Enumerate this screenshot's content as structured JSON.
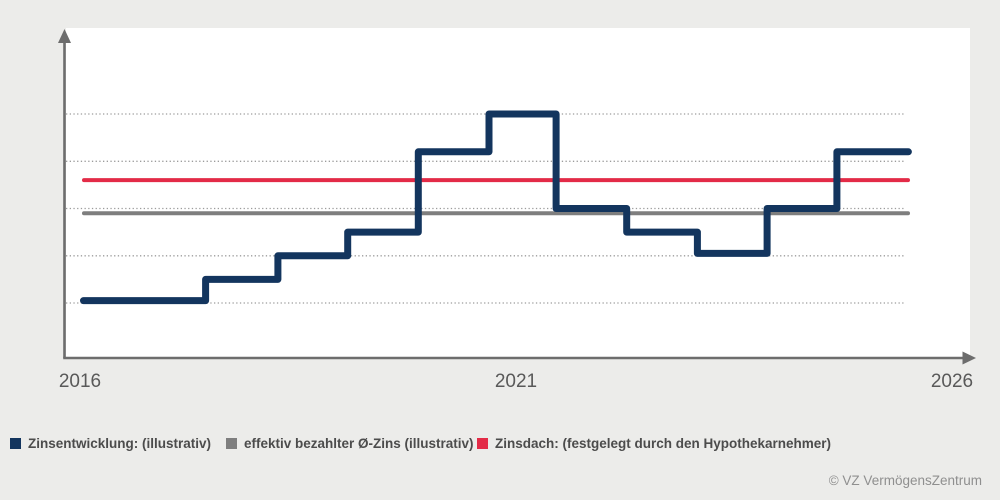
{
  "page": {
    "background_color": "#ececea",
    "plot_background_color": "#ffffff",
    "copyright": "© VZ VermögensZentrum"
  },
  "legend": [
    {
      "label": "Zinsentwicklung: (illustrativ)",
      "color": "#13355e"
    },
    {
      "label": "effektiv bezahlter Ø-Zins (illustrativ)",
      "color": "#7e7e7e"
    },
    {
      "label": "Zinsdach: (festgelegt durch den Hypothekarnehmer)",
      "color": "#e32b47"
    }
  ],
  "chart_data": {
    "type": "line",
    "subtype": "step",
    "title": "",
    "xlabel": "",
    "ylabel": "",
    "x_axis": {
      "ticks": [
        "2016",
        "2021",
        "2026"
      ],
      "range_years": [
        2016,
        2026
      ],
      "arrow": true
    },
    "y_axis": {
      "ticks": [],
      "gridline_values": [
        1,
        2,
        3,
        4,
        5
      ],
      "grid_style": "dotted",
      "arrow": true
    },
    "legend_position": "bottom",
    "series": [
      {
        "name": "Zinsentwicklung: (illustrativ)",
        "type": "step",
        "color": "#13355e",
        "stroke_width": 7,
        "points_year_value": [
          [
            2016.04,
            1.05
          ],
          [
            2017.44,
            1.05
          ],
          [
            2017.44,
            1.5
          ],
          [
            2018.27,
            1.5
          ],
          [
            2018.27,
            2.0
          ],
          [
            2019.07,
            2.0
          ],
          [
            2019.07,
            2.5
          ],
          [
            2019.88,
            2.5
          ],
          [
            2019.88,
            4.2
          ],
          [
            2020.69,
            4.2
          ],
          [
            2020.69,
            5.0
          ],
          [
            2021.46,
            5.0
          ],
          [
            2021.46,
            3.0
          ],
          [
            2022.27,
            3.0
          ],
          [
            2022.27,
            2.5
          ],
          [
            2023.08,
            2.5
          ],
          [
            2023.08,
            2.05
          ],
          [
            2023.88,
            2.05
          ],
          [
            2023.88,
            3.0
          ],
          [
            2024.68,
            3.0
          ],
          [
            2024.68,
            4.2
          ],
          [
            2025.5,
            4.2
          ]
        ]
      },
      {
        "name": "effektiv bezahlter Ø-Zins (illustrativ)",
        "type": "hline",
        "color": "#7e7e7e",
        "stroke_width": 4,
        "value": 2.9
      },
      {
        "name": "Zinsdach: (festgelegt durch den Hypothekarnehmer)",
        "type": "hline",
        "color": "#e32b47",
        "stroke_width": 4,
        "value": 3.6
      }
    ]
  }
}
